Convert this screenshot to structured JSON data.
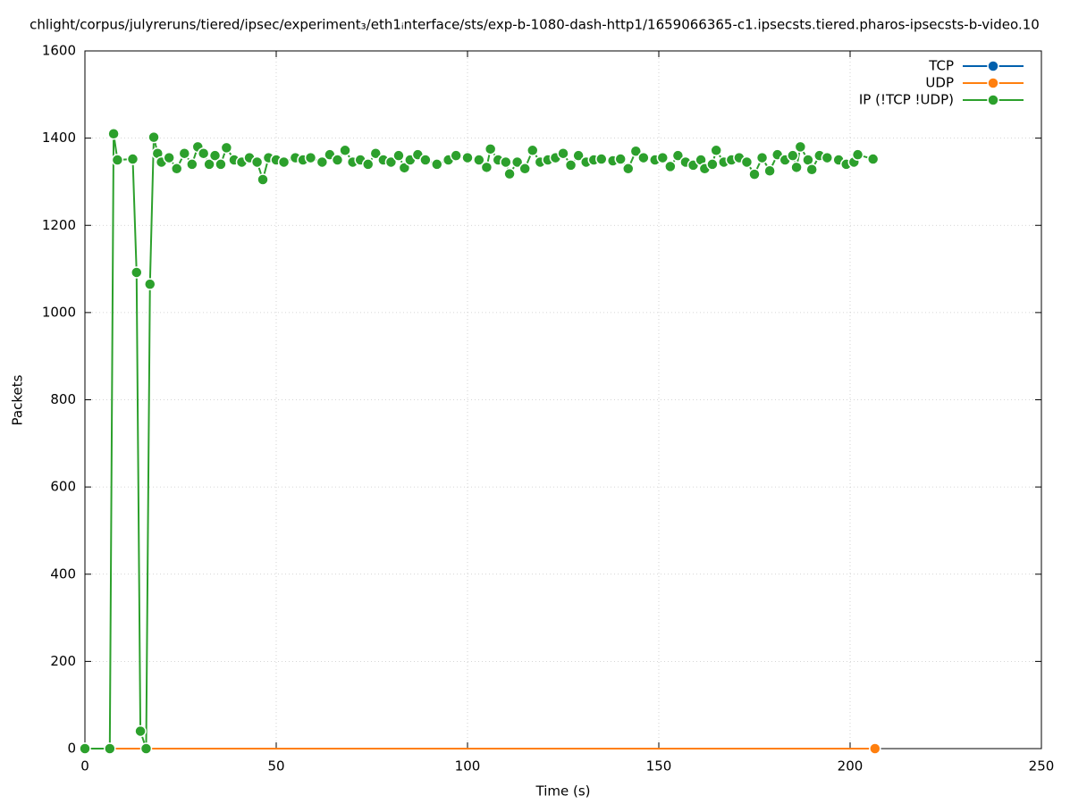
{
  "chart_data": {
    "type": "line",
    "title": "chlight/corpus/julyreruns/tiered/ipsec/experiment₃/eth1ᵢnterface/sts/exp-b-1080-dash-http1/1659066365-c1.ipsecsts.tiered.pharos-ipsecsts-b-video.10",
    "x_label": "Time (s)",
    "y_label": "Packets",
    "xlim": [
      0,
      250
    ],
    "xticks": [
      0,
      50,
      100,
      150,
      200,
      250
    ],
    "ylim": [
      0,
      1600
    ],
    "yticks": [
      0,
      200,
      400,
      600,
      800,
      1000,
      1200,
      1400,
      1600
    ],
    "grid": true,
    "legend": "top-right",
    "series": [
      {
        "name": "TCP",
        "color": "#0060ad",
        "x": [],
        "values": []
      },
      {
        "name": "UDP",
        "color": "#ff7f0e",
        "x": [
          0,
          206.5
        ],
        "values": [
          0,
          0
        ]
      },
      {
        "name": "IP (!TCP  !UDP)",
        "color": "#2ca02c",
        "x": [
          0,
          6.5,
          7.5,
          8.5,
          12.5,
          13.5,
          14.5,
          16,
          17,
          18,
          19,
          20,
          22,
          24,
          26,
          28,
          29.5,
          31,
          32.5,
          34,
          35.5,
          37,
          39,
          41,
          43,
          45,
          46.5,
          48,
          50,
          52,
          55,
          57,
          59,
          62,
          64,
          66,
          68,
          70,
          72,
          74,
          76,
          78,
          80,
          82,
          83.5,
          85,
          87,
          89,
          92,
          95,
          97,
          100,
          103,
          105,
          106,
          108,
          110,
          111,
          113,
          115,
          117,
          119,
          121,
          123,
          125,
          127,
          129,
          131,
          133,
          135,
          138,
          140,
          142,
          144,
          146,
          149,
          151,
          153,
          155,
          157,
          159,
          161,
          162,
          164,
          165,
          167,
          169,
          171,
          173,
          175,
          177,
          179,
          181,
          183,
          185,
          186,
          187,
          189,
          190,
          192,
          194,
          197,
          199,
          201,
          202,
          206
        ],
        "values": [
          0,
          0,
          1410,
          1350,
          1352,
          1092,
          40,
          0,
          1065,
          1402,
          1365,
          1345,
          1355,
          1330,
          1365,
          1340,
          1380,
          1365,
          1340,
          1360,
          1340,
          1378,
          1350,
          1345,
          1355,
          1345,
          1305,
          1355,
          1350,
          1345,
          1355,
          1350,
          1355,
          1345,
          1362,
          1350,
          1372,
          1345,
          1350,
          1340,
          1365,
          1350,
          1345,
          1360,
          1332,
          1350,
          1362,
          1350,
          1340,
          1350,
          1360,
          1355,
          1350,
          1333,
          1375,
          1350,
          1345,
          1318,
          1345,
          1330,
          1372,
          1345,
          1350,
          1355,
          1365,
          1338,
          1360,
          1345,
          1350,
          1352,
          1348,
          1352,
          1330,
          1370,
          1355,
          1350,
          1355,
          1335,
          1360,
          1345,
          1338,
          1350,
          1330,
          1340,
          1372,
          1345,
          1350,
          1355,
          1345,
          1317,
          1355,
          1325,
          1362,
          1350,
          1360,
          1333,
          1380,
          1350,
          1328,
          1360,
          1355,
          1350,
          1340,
          1345,
          1362,
          1352
        ]
      }
    ]
  }
}
